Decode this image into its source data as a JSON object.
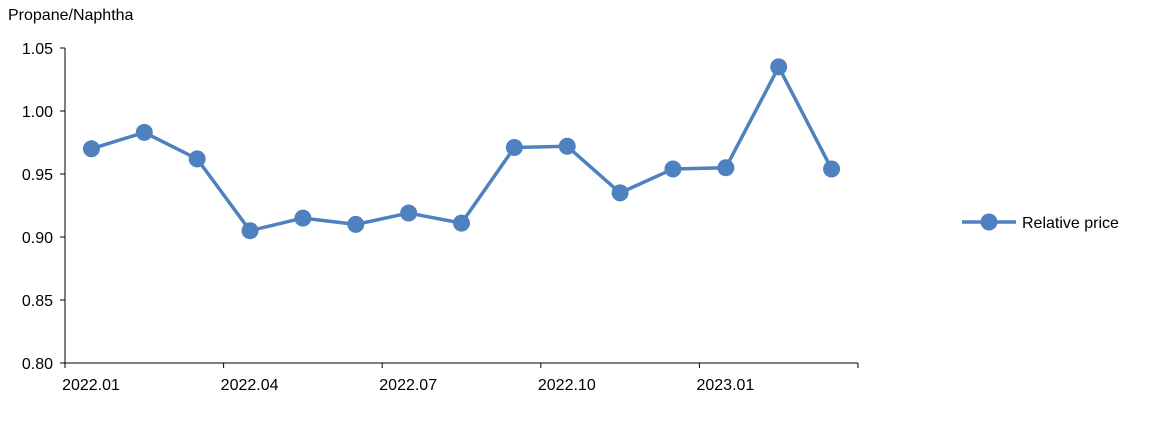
{
  "chart_data": {
    "type": "line",
    "title": "",
    "ylabel": "Propane/Naphtha",
    "xlabel": "",
    "ylim": [
      0.8,
      1.05
    ],
    "yticks": [
      "0.80",
      "0.85",
      "0.90",
      "0.95",
      "1.00",
      "1.05"
    ],
    "xtick_labels": [
      {
        "index": 0,
        "label": "2022.01"
      },
      {
        "index": 3,
        "label": "2022.04"
      },
      {
        "index": 6,
        "label": "2022.07"
      },
      {
        "index": 9,
        "label": "2022.10"
      },
      {
        "index": 12,
        "label": "2023.01"
      }
    ],
    "categories": [
      "2022.01",
      "2022.02",
      "2022.03",
      "2022.04",
      "2022.05",
      "2022.06",
      "2022.07",
      "2022.08",
      "2022.09",
      "2022.10",
      "2022.11",
      "2022.12",
      "2023.01",
      "2023.02",
      "2023.03"
    ],
    "series": [
      {
        "name": "Relative price",
        "color": "#4E81BD",
        "values": [
          0.97,
          0.983,
          0.962,
          0.905,
          0.915,
          0.91,
          0.919,
          0.911,
          0.971,
          0.972,
          0.935,
          0.954,
          0.955,
          1.035,
          0.954
        ]
      }
    ],
    "grid": false,
    "legend_position": "right"
  }
}
